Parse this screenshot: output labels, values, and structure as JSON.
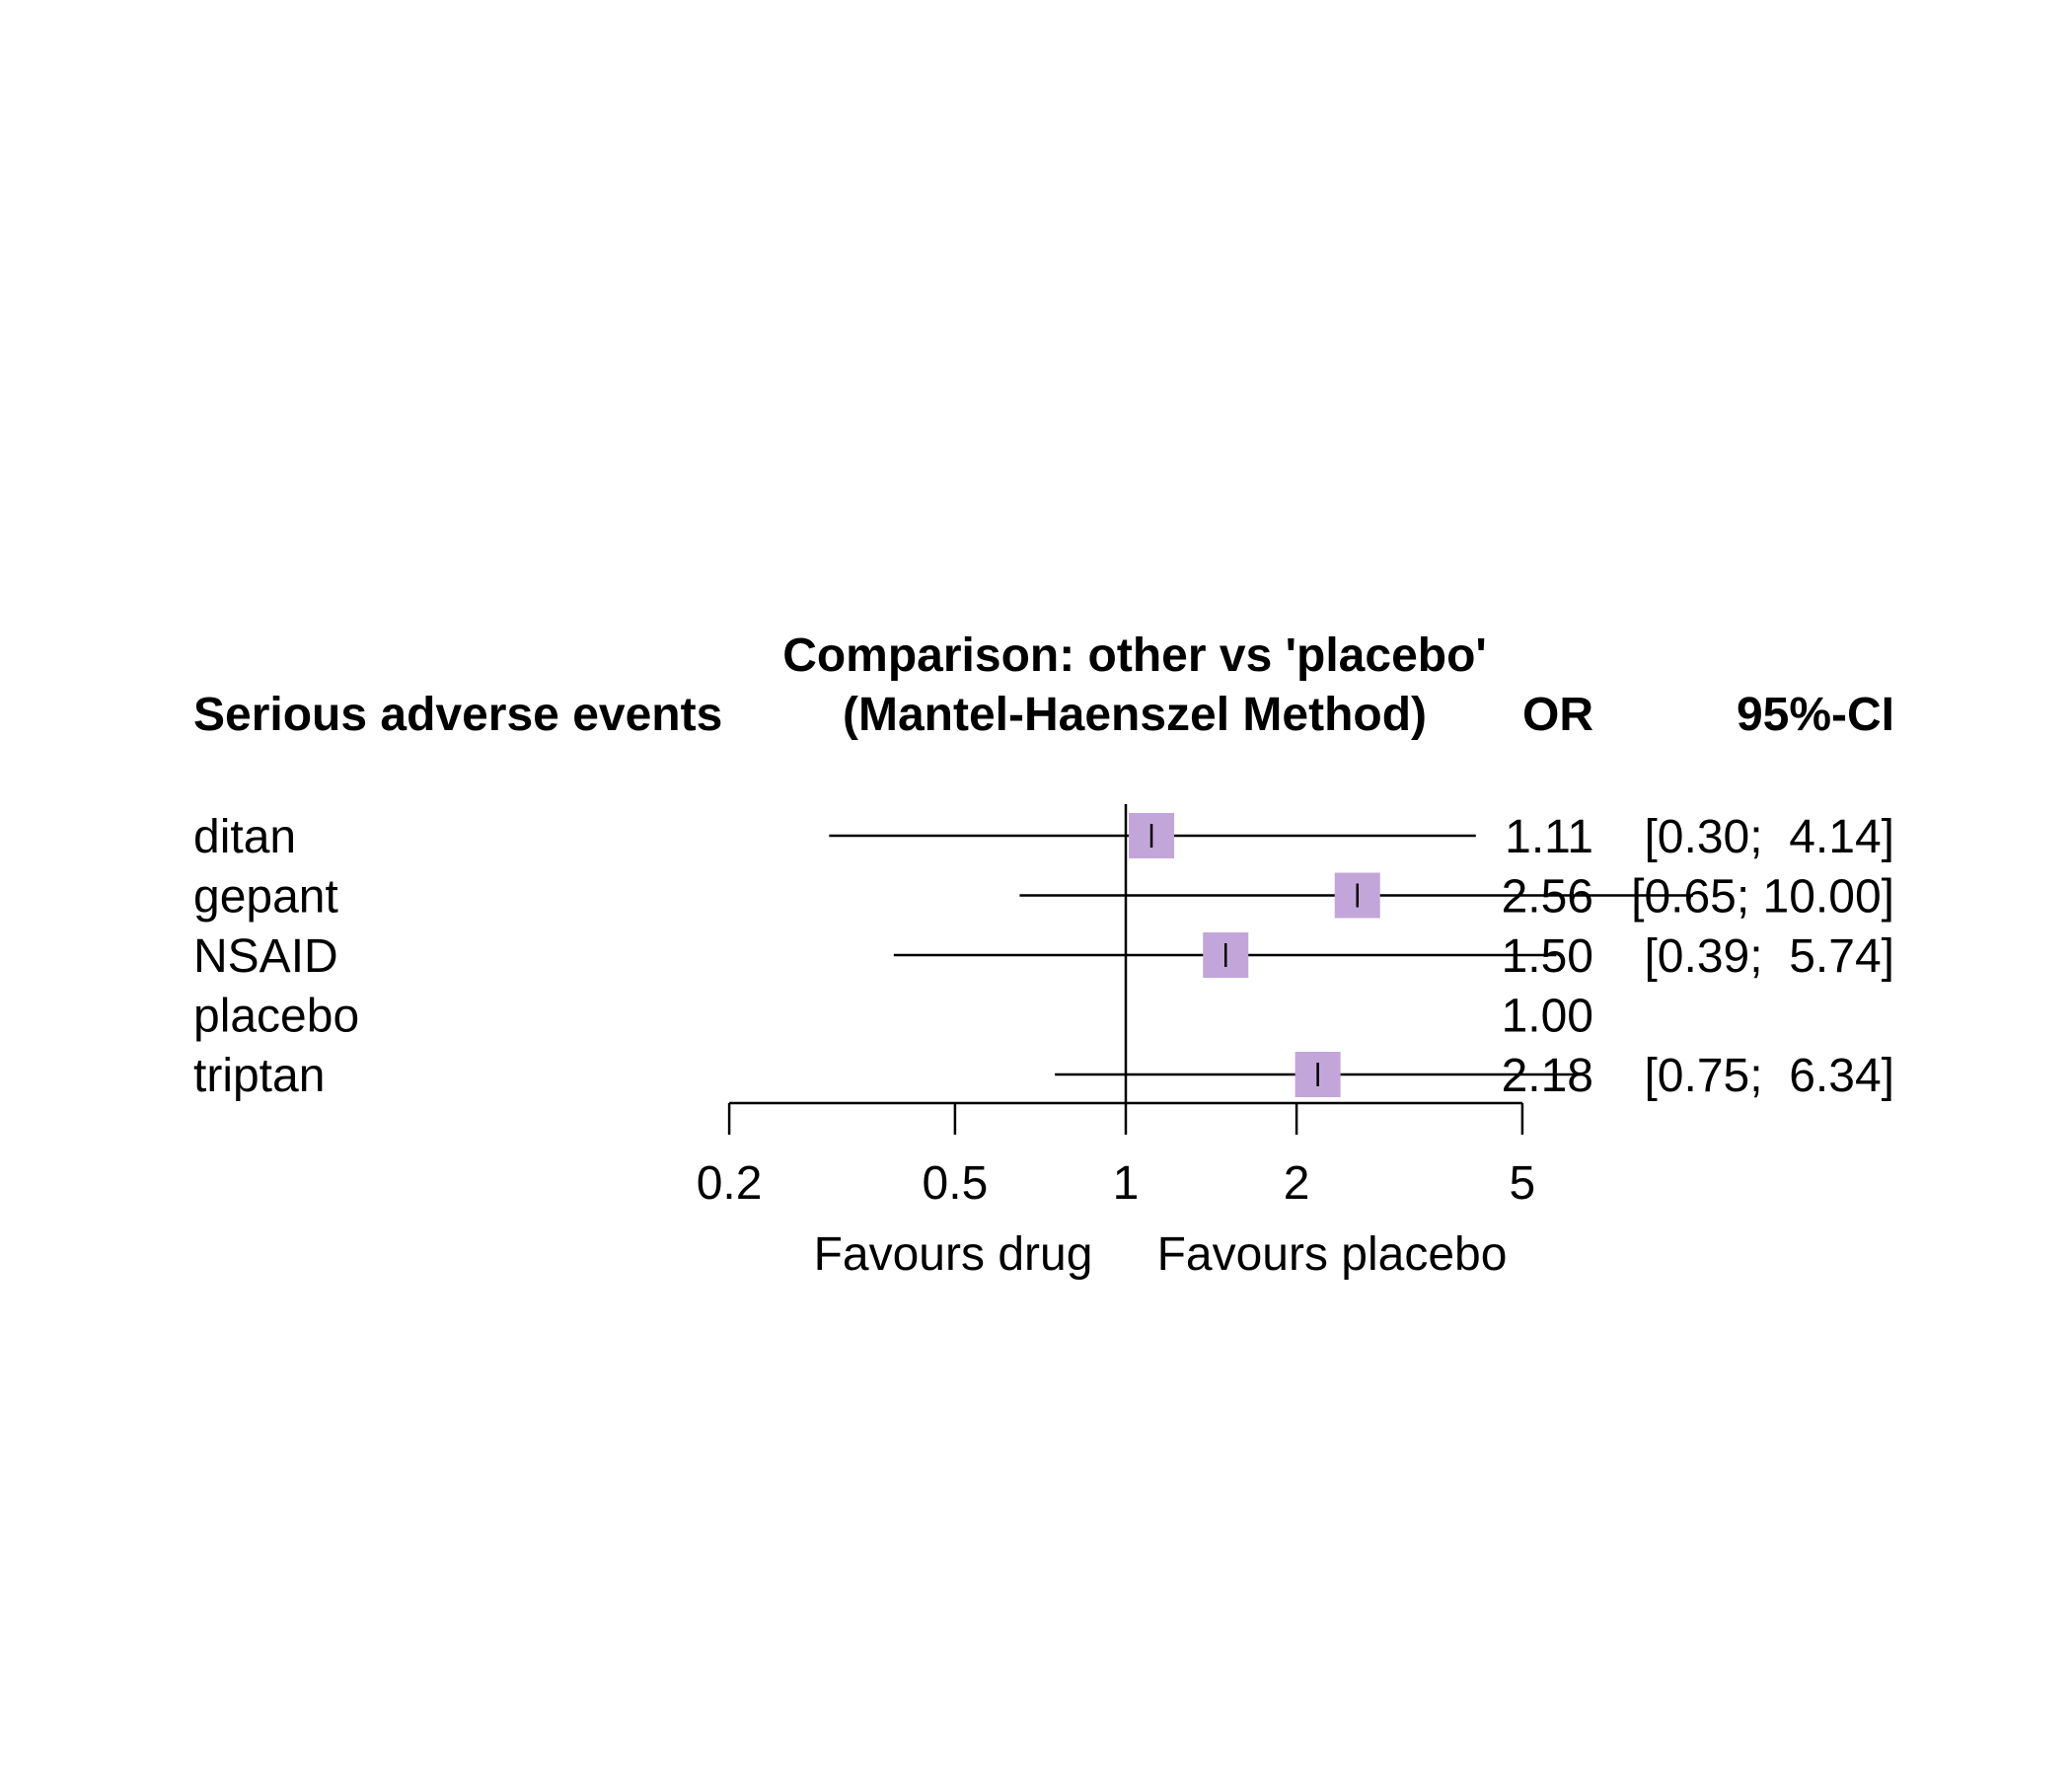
{
  "chart_data": {
    "type": "forest",
    "header": {
      "column_label": "Serious adverse events",
      "comparison_line1": "Comparison: other vs 'placebo'",
      "comparison_line2": "(Mantel-Haenszel Method)",
      "or_label": "OR",
      "ci_label": "95%-CI"
    },
    "rows": [
      {
        "label": "ditan",
        "or": 1.11,
        "lower": 0.3,
        "upper": 4.14,
        "or_text": "1.11",
        "ci_text": "[0.30;  4.14]"
      },
      {
        "label": "gepant",
        "or": 2.56,
        "lower": 0.65,
        "upper": 10.0,
        "or_text": "2.56",
        "ci_text": "[0.65; 10.00]"
      },
      {
        "label": "NSAID",
        "or": 1.5,
        "lower": 0.39,
        "upper": 5.74,
        "or_text": "1.50",
        "ci_text": "[0.39;  5.74]"
      },
      {
        "label": "placebo",
        "or": 1.0,
        "lower": null,
        "upper": null,
        "or_text": "1.00",
        "ci_text": ""
      },
      {
        "label": "triptan",
        "or": 2.18,
        "lower": 0.75,
        "upper": 6.34,
        "or_text": "2.18",
        "ci_text": "[0.75;  6.34]"
      }
    ],
    "x_axis": {
      "scale": "log",
      "ticks": [
        0.2,
        0.5,
        1,
        2,
        5
      ],
      "tick_labels": [
        "0.2",
        "0.5",
        "1",
        "2",
        "5"
      ],
      "reference": 1
    },
    "favours_left": "Favours drug",
    "favours_right": "Favours placebo",
    "marker_color": "#c3a6d9"
  }
}
